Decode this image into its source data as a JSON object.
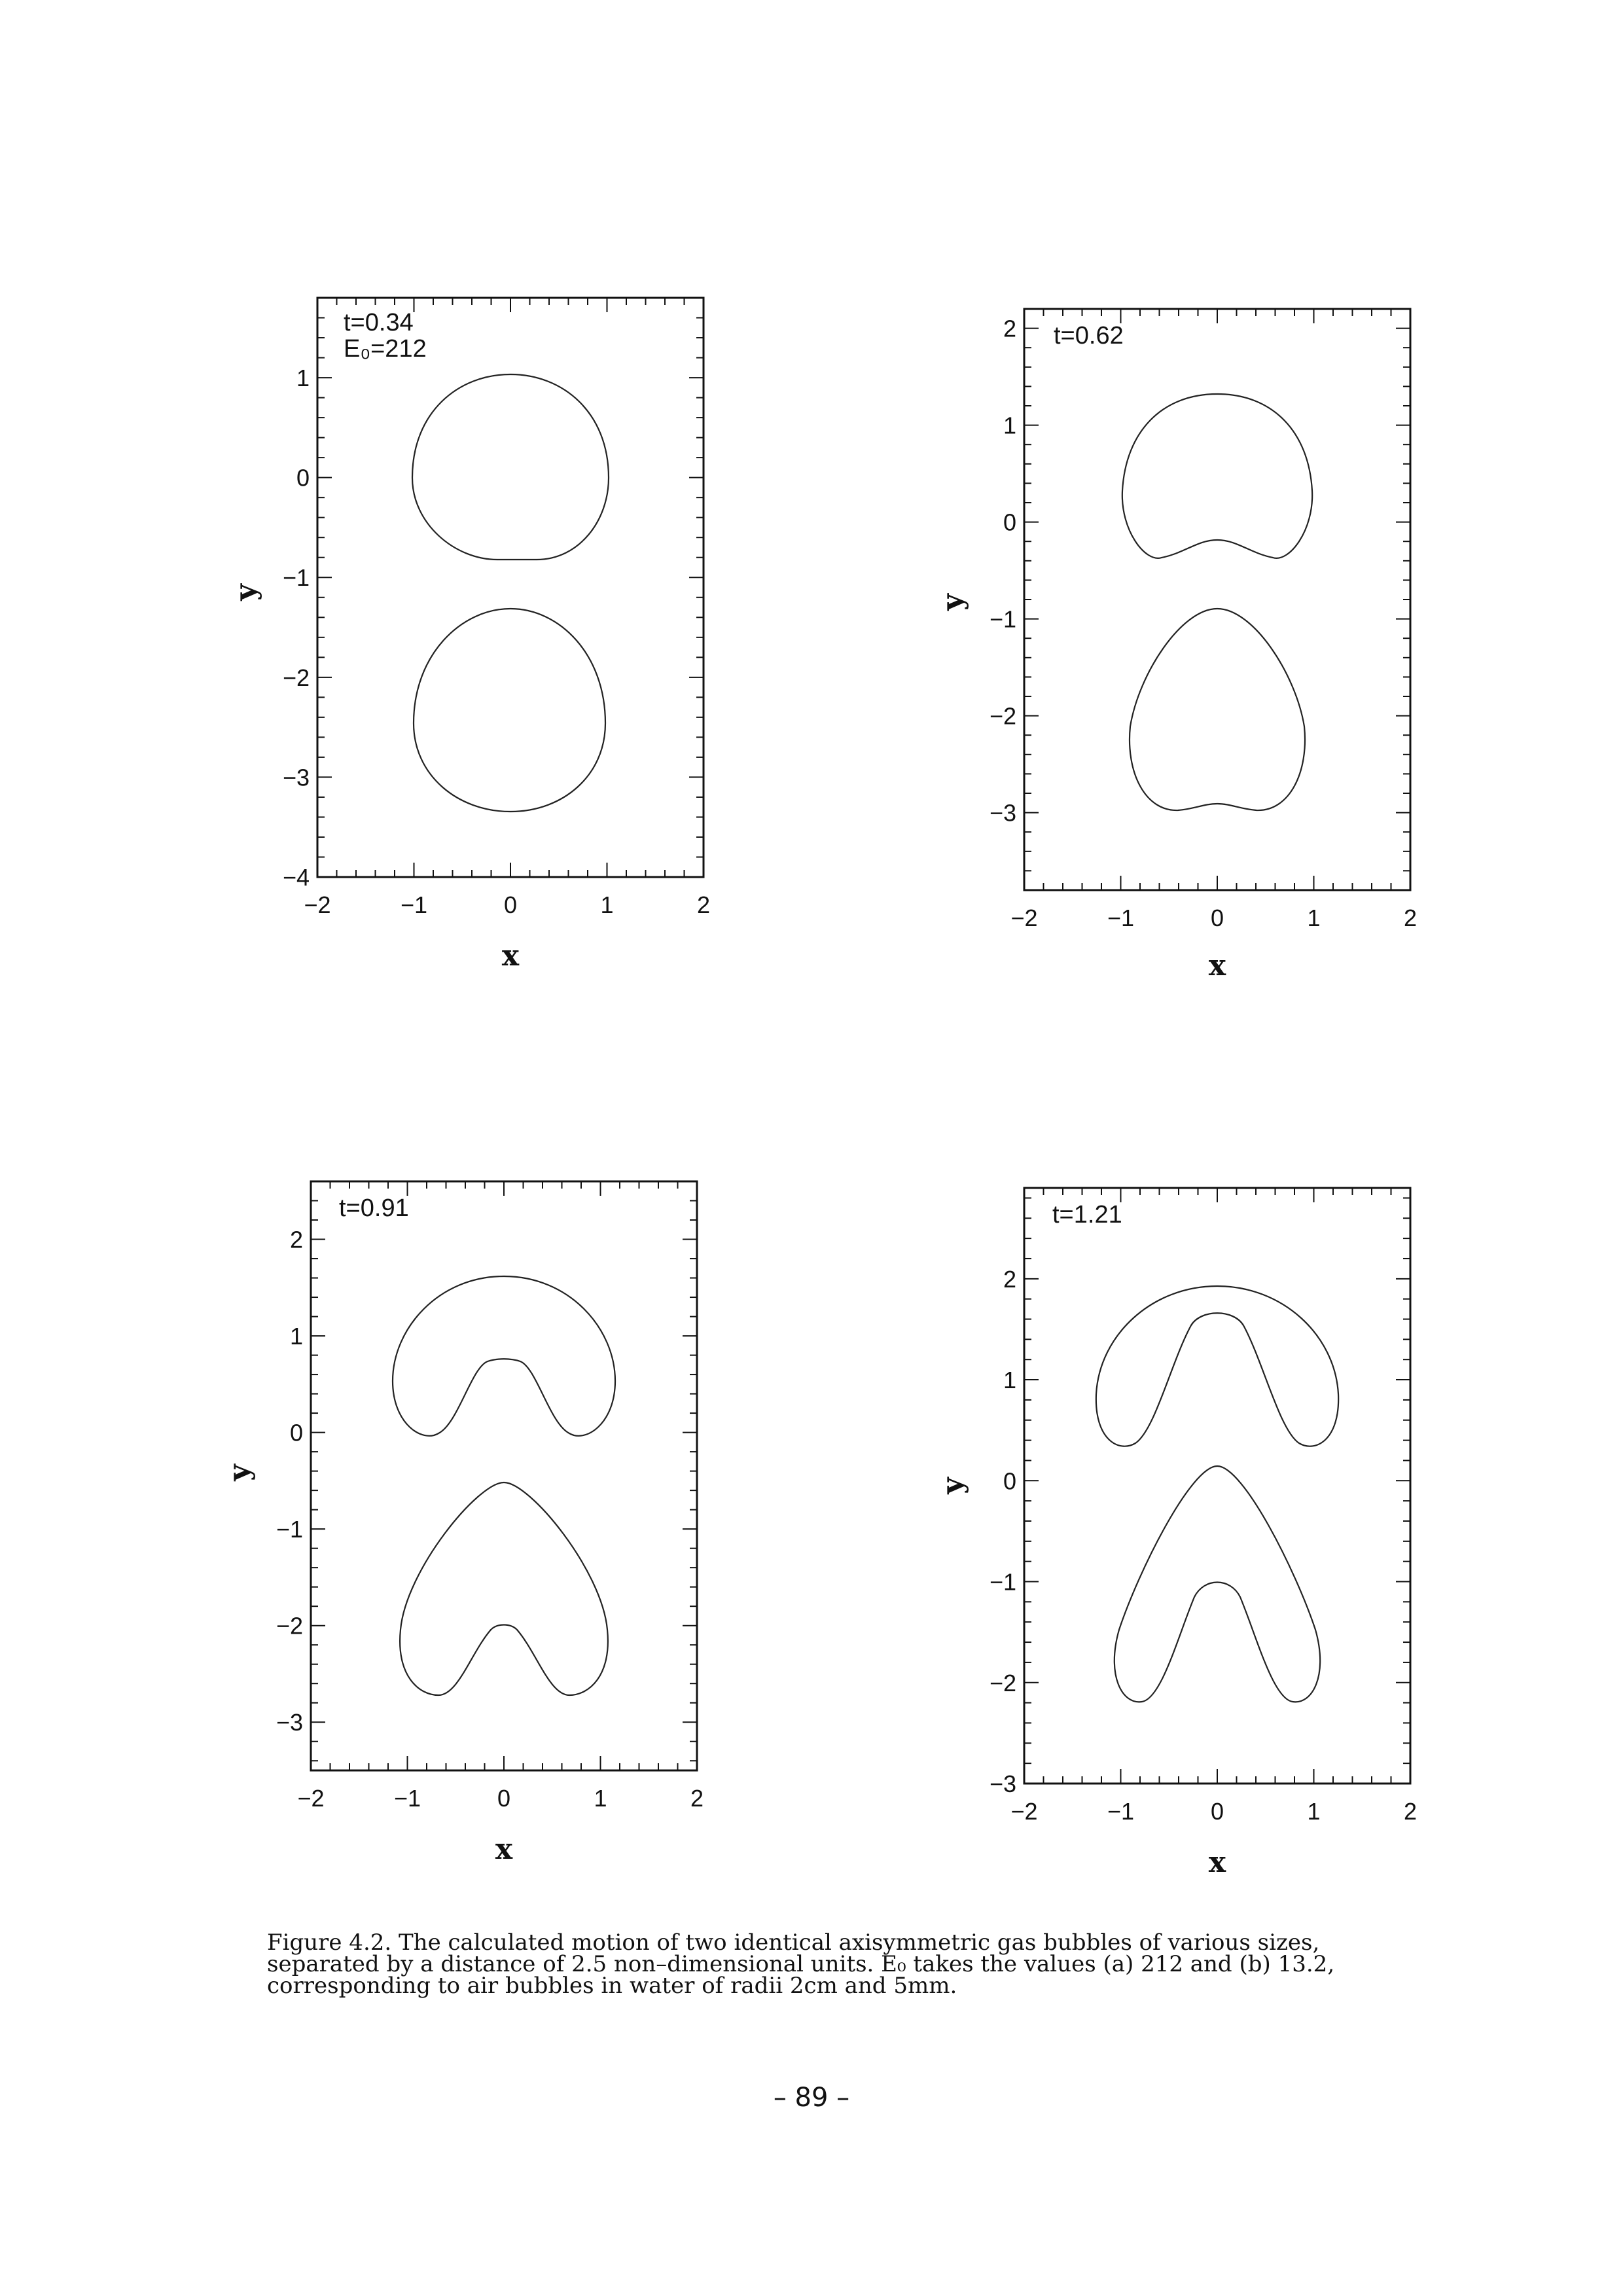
{
  "figure": {
    "panels": [
      {
        "time_label": "t=0.34",
        "eo_label": "E₀=212",
        "xlabel": "x",
        "ylabel": "y",
        "xlim": [
          -2,
          2
        ],
        "ylim": [
          -4,
          1.8
        ],
        "xticks": [
          "−2",
          "−1",
          "0",
          "1",
          "2"
        ],
        "yticks": [
          {
            "v": 1,
            "label": "1"
          },
          {
            "v": 0,
            "label": "0"
          },
          {
            "v": -1,
            "label": "−1"
          },
          {
            "v": -2,
            "label": "−2"
          },
          {
            "v": -3,
            "label": "−3"
          },
          {
            "v": -4,
            "label": "−4"
          }
        ]
      },
      {
        "time_label": "t=0.62",
        "xlabel": "x",
        "ylabel": "y",
        "xlim": [
          -2,
          2
        ],
        "ylim": [
          -3.8,
          2.2
        ],
        "xticks": [
          "−2",
          "−1",
          "0",
          "1",
          "2"
        ],
        "yticks": [
          {
            "v": 2,
            "label": "2"
          },
          {
            "v": 1,
            "label": "1"
          },
          {
            "v": 0,
            "label": "0"
          },
          {
            "v": -1,
            "label": "−1"
          },
          {
            "v": -2,
            "label": "−2"
          },
          {
            "v": -3,
            "label": "−3"
          }
        ]
      },
      {
        "time_label": "t=0.91",
        "xlabel": "x",
        "ylabel": "y",
        "xlim": [
          -2,
          2
        ],
        "ylim": [
          -3.5,
          2.6
        ],
        "xticks": [
          "−2",
          "−1",
          "0",
          "1",
          "2"
        ],
        "yticks": [
          {
            "v": 2,
            "label": "2"
          },
          {
            "v": 1,
            "label": "1"
          },
          {
            "v": 0,
            "label": "0"
          },
          {
            "v": -1,
            "label": "−1"
          },
          {
            "v": -2,
            "label": "−2"
          },
          {
            "v": -3,
            "label": "−3"
          }
        ]
      },
      {
        "time_label": "t=1.21",
        "xlabel": "x",
        "ylabel": "y",
        "xlim": [
          -2,
          2
        ],
        "ylim": [
          -3,
          2.9
        ],
        "xticks": [
          "−2",
          "−1",
          "0",
          "1",
          "2"
        ],
        "yticks": [
          {
            "v": 2,
            "label": "2"
          },
          {
            "v": 1,
            "label": "1"
          },
          {
            "v": 0,
            "label": "0"
          },
          {
            "v": -1,
            "label": "−1"
          },
          {
            "v": -2,
            "label": "−2"
          },
          {
            "v": -3,
            "label": "−3"
          }
        ]
      }
    ],
    "caption_lines": [
      "Figure 4.2. The calculated motion of two identical axisymmetric gas bubbles of various sizes,",
      "separated by a distance of 2.5 non–dimensional units. E₀ takes the values (a) 212 and (b) 13.2,",
      "corresponding to air bubbles in water of radii 2cm and 5mm."
    ]
  },
  "page_number": "– 89 –"
}
